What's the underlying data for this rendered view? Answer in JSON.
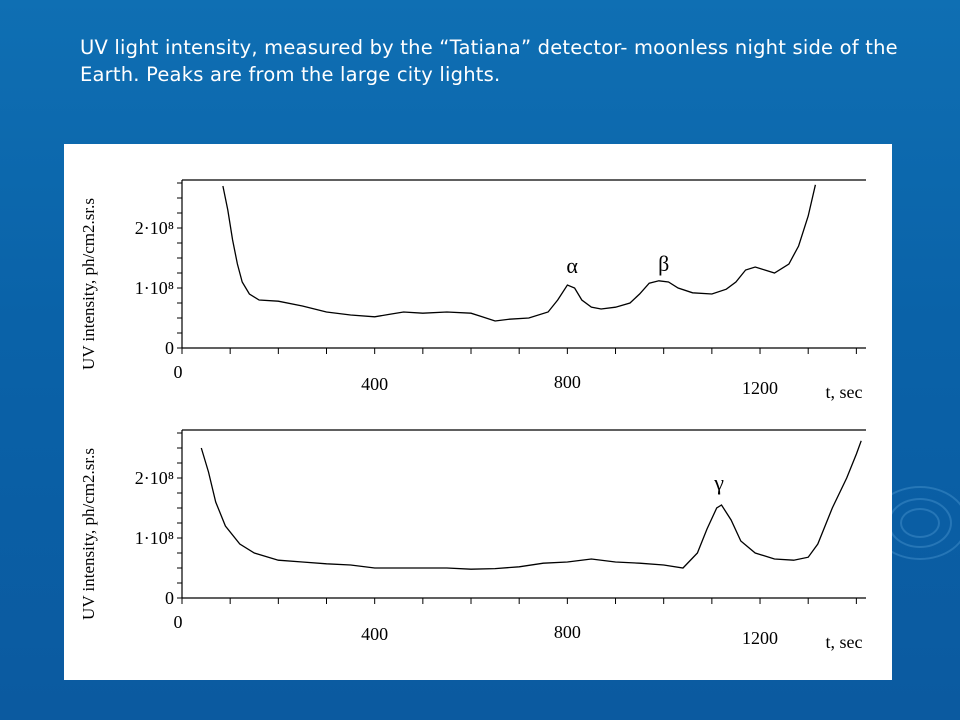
{
  "slide": {
    "title": "UV light intensity, measured by the “Tatiana” detector- moonless night side of the Earth. Peaks are from the large city lights."
  },
  "colors": {
    "background": "#0b64aa",
    "panel": "#ffffff",
    "ink": "#000000"
  },
  "chart_data": [
    {
      "type": "line",
      "ylabel": "UV intensity, ph/cm2.sr.s",
      "xlabel": "t, sec",
      "x_ticks": [
        0,
        400,
        800,
        1200
      ],
      "x_tick_labels": [
        "0",
        "400",
        "800",
        "1200"
      ],
      "y_ticks": [
        0,
        100000000,
        200000000
      ],
      "y_tick_labels": [
        "0",
        "1·10⁸",
        "2·10⁸"
      ],
      "xlim": [
        0,
        1420
      ],
      "ylim": [
        0,
        280000000
      ],
      "grid": false,
      "series": [
        {
          "x": [
            85,
            95,
            105,
            115,
            125,
            140,
            160,
            200,
            250,
            300,
            350,
            400,
            430,
            460,
            500,
            550,
            600,
            620,
            650,
            680,
            720,
            760,
            780,
            800,
            815,
            830,
            850,
            870,
            900,
            930,
            950,
            970,
            990,
            1010,
            1030,
            1060,
            1100,
            1130,
            1150,
            1170,
            1190,
            1210,
            1230,
            1260,
            1280,
            1300,
            1315
          ],
          "y": [
            270000000,
            230000000,
            180000000,
            140000000,
            110000000,
            90000000,
            80000000,
            78000000,
            70000000,
            60000000,
            55000000,
            52000000,
            56000000,
            60000000,
            58000000,
            60000000,
            58000000,
            53000000,
            45000000,
            48000000,
            50000000,
            60000000,
            80000000,
            105000000,
            100000000,
            80000000,
            68000000,
            65000000,
            68000000,
            75000000,
            90000000,
            108000000,
            112000000,
            110000000,
            100000000,
            92000000,
            90000000,
            98000000,
            110000000,
            130000000,
            135000000,
            130000000,
            125000000,
            140000000,
            170000000,
            220000000,
            272000000
          ]
        }
      ],
      "annotations": [
        {
          "text": "α",
          "x": 810,
          "y": 125000000
        },
        {
          "text": "β",
          "x": 1000,
          "y": 128000000
        }
      ]
    },
    {
      "type": "line",
      "ylabel": "UV intensity, ph/cm2.sr.s",
      "xlabel": "t, sec",
      "x_ticks": [
        0,
        400,
        800,
        1200
      ],
      "x_tick_labels": [
        "0",
        "400",
        "800",
        "1200"
      ],
      "y_ticks": [
        0,
        100000000,
        200000000
      ],
      "y_tick_labels": [
        "0",
        "1·10⁸",
        "2·10⁸"
      ],
      "xlim": [
        0,
        1420
      ],
      "ylim": [
        0,
        280000000
      ],
      "grid": false,
      "series": [
        {
          "x": [
            40,
            55,
            70,
            90,
            120,
            150,
            200,
            250,
            300,
            350,
            400,
            450,
            500,
            550,
            600,
            650,
            700,
            750,
            800,
            850,
            900,
            950,
            1000,
            1040,
            1070,
            1090,
            1110,
            1120,
            1140,
            1160,
            1190,
            1230,
            1270,
            1300,
            1320,
            1350,
            1380,
            1400,
            1410
          ],
          "y": [
            250000000,
            210000000,
            160000000,
            120000000,
            90000000,
            75000000,
            63000000,
            60000000,
            57000000,
            55000000,
            50000000,
            50000000,
            50000000,
            50000000,
            48000000,
            49000000,
            52000000,
            58000000,
            60000000,
            65000000,
            60000000,
            58000000,
            55000000,
            50000000,
            75000000,
            115000000,
            150000000,
            155000000,
            130000000,
            95000000,
            75000000,
            65000000,
            63000000,
            68000000,
            90000000,
            150000000,
            200000000,
            240000000,
            262000000
          ]
        }
      ],
      "annotations": [
        {
          "text": "γ",
          "x": 1115,
          "y": 180000000
        }
      ]
    }
  ]
}
